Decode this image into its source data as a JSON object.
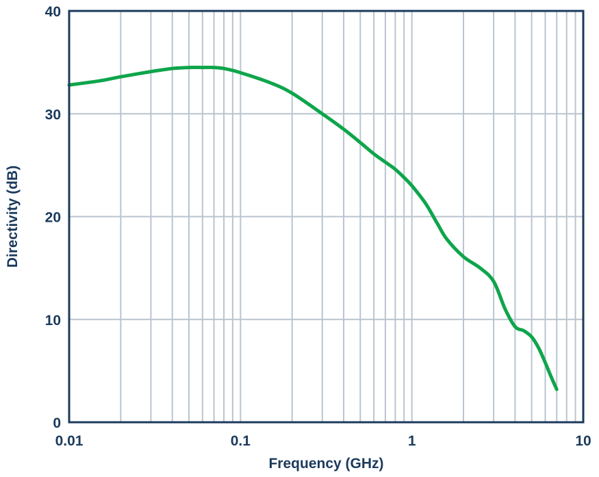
{
  "chart_data": {
    "type": "line",
    "title": "",
    "xlabel": "Frequency (GHz)",
    "ylabel": "Directivity (dB)",
    "x_scale": "log",
    "xlim": [
      0.01,
      10
    ],
    "ylim": [
      0,
      40
    ],
    "x_ticks": [
      0.01,
      0.1,
      1,
      10
    ],
    "x_tick_labels": [
      "0.01",
      "0.1",
      "1",
      "10"
    ],
    "y_ticks": [
      0,
      10,
      20,
      30,
      40
    ],
    "y_tick_labels": [
      "0",
      "10",
      "20",
      "30",
      "40"
    ],
    "grid": true,
    "legend": "none",
    "series": [
      {
        "color": "#0ea54b",
        "x": [
          0.01,
          0.015,
          0.02,
          0.03,
          0.04,
          0.05,
          0.06,
          0.07,
          0.08,
          0.1,
          0.15,
          0.2,
          0.3,
          0.4,
          0.5,
          0.6,
          0.7,
          0.8,
          0.9,
          1.0,
          1.2,
          1.4,
          1.6,
          2.0,
          2.5,
          3.0,
          3.5,
          4.0,
          4.5,
          5.0,
          5.5,
          6.0,
          6.5,
          7.0
        ],
        "y": [
          32.8,
          33.2,
          33.6,
          34.1,
          34.4,
          34.5,
          34.5,
          34.5,
          34.4,
          34.0,
          33.0,
          32.0,
          30.0,
          28.5,
          27.2,
          26.1,
          25.3,
          24.6,
          23.8,
          23.0,
          21.3,
          19.4,
          17.8,
          16.1,
          15.0,
          13.7,
          11.0,
          9.3,
          8.9,
          8.3,
          7.2,
          5.8,
          4.4,
          3.2
        ]
      }
    ]
  },
  "colors": {
    "axis": "#1b3a5c",
    "grid": "#b8c4cf",
    "line": "#0ea54b"
  }
}
